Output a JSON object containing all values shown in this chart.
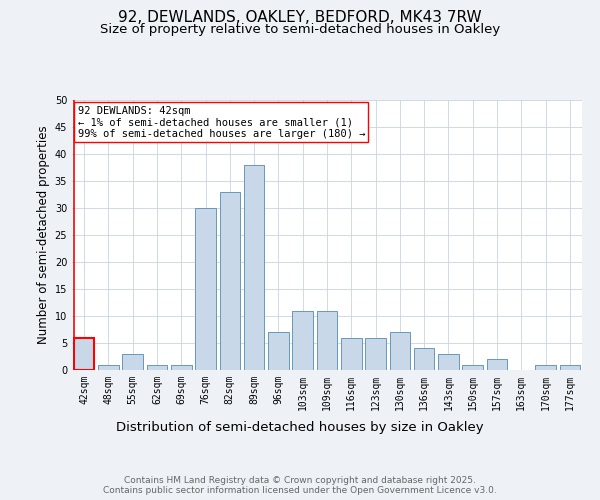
{
  "title1": "92, DEWLANDS, OAKLEY, BEDFORD, MK43 7RW",
  "title2": "Size of property relative to semi-detached houses in Oakley",
  "xlabel": "Distribution of semi-detached houses by size in Oakley",
  "ylabel": "Number of semi-detached properties",
  "categories": [
    "42sqm",
    "48sqm",
    "55sqm",
    "62sqm",
    "69sqm",
    "76sqm",
    "82sqm",
    "89sqm",
    "96sqm",
    "103sqm",
    "109sqm",
    "116sqm",
    "123sqm",
    "130sqm",
    "136sqm",
    "143sqm",
    "150sqm",
    "157sqm",
    "163sqm",
    "170sqm",
    "177sqm"
  ],
  "values": [
    6,
    1,
    3,
    1,
    1,
    30,
    33,
    38,
    7,
    11,
    11,
    6,
    6,
    7,
    4,
    3,
    1,
    2,
    0,
    1,
    1
  ],
  "highlight_index": 0,
  "bar_color": "#c8d8e8",
  "bar_edge_color": "#6699bb",
  "highlight_bar_edge_color": "red",
  "annotation_box_text": "92 DEWLANDS: 42sqm\n← 1% of semi-detached houses are smaller (1)\n99% of semi-detached houses are larger (180) →",
  "footer_text": "Contains HM Land Registry data © Crown copyright and database right 2025.\nContains public sector information licensed under the Open Government Licence v3.0.",
  "ylim": [
    0,
    50
  ],
  "yticks": [
    0,
    5,
    10,
    15,
    20,
    25,
    30,
    35,
    40,
    45,
    50
  ],
  "bg_color": "#eef2f7",
  "plot_bg_color": "#ffffff",
  "grid_color": "#c8d4e0",
  "title1_fontsize": 11,
  "title2_fontsize": 9.5,
  "xlabel_fontsize": 9.5,
  "ylabel_fontsize": 8.5,
  "tick_fontsize": 7,
  "annotation_fontsize": 7.5,
  "footer_fontsize": 6.5
}
